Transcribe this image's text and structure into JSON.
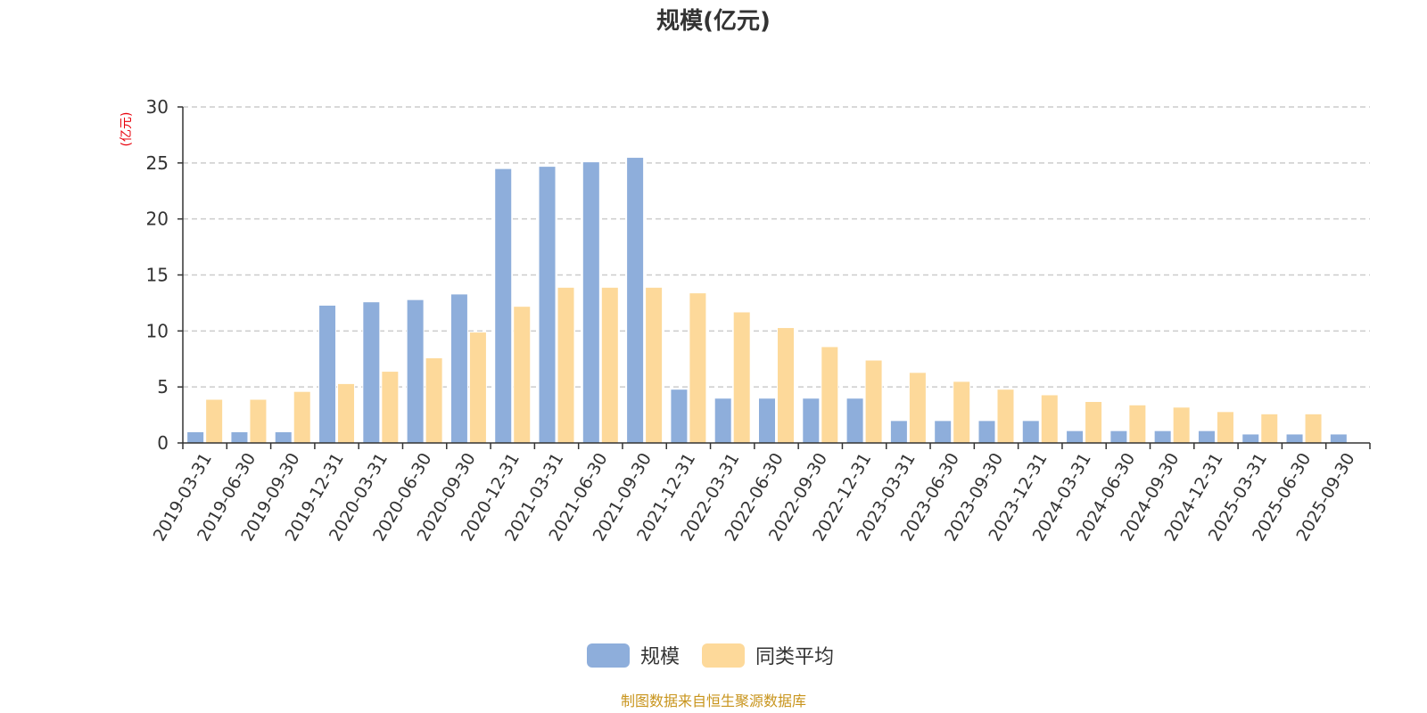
{
  "chart_data": {
    "type": "bar",
    "title": "规模(亿元)",
    "ylabel": "(亿元)",
    "ylim": [
      0,
      30
    ],
    "yticks": [
      0,
      5,
      10,
      15,
      20,
      25,
      30
    ],
    "grid": true,
    "legend_position": "bottom",
    "categories": [
      "2019-03-31",
      "2019-06-30",
      "2019-09-30",
      "2019-12-31",
      "2020-03-31",
      "2020-06-30",
      "2020-09-30",
      "2020-12-31",
      "2021-03-31",
      "2021-06-30",
      "2021-09-30",
      "2021-12-31",
      "2022-03-31",
      "2022-06-30",
      "2022-09-30",
      "2022-12-31",
      "2023-03-31",
      "2023-06-30",
      "2023-09-30",
      "2023-12-31",
      "2024-03-31",
      "2024-06-30",
      "2024-09-30",
      "2024-12-31",
      "2025-03-31",
      "2025-06-30",
      "2025-09-30"
    ],
    "series": [
      {
        "name": "规模",
        "color": "#8eaedb",
        "values": [
          1.0,
          1.0,
          1.0,
          12.3,
          12.6,
          12.8,
          13.3,
          24.5,
          24.7,
          25.1,
          25.5,
          4.8,
          4.0,
          4.0,
          4.0,
          4.0,
          2.0,
          2.0,
          2.0,
          2.0,
          1.1,
          1.1,
          1.1,
          1.1,
          0.8,
          0.8,
          0.8
        ]
      },
      {
        "name": "同类平均",
        "color": "#fdd99a",
        "values": [
          3.9,
          3.9,
          4.6,
          5.3,
          6.4,
          7.6,
          9.9,
          12.2,
          13.9,
          13.9,
          13.9,
          13.4,
          11.7,
          10.3,
          8.6,
          7.4,
          6.3,
          5.5,
          4.8,
          4.3,
          3.7,
          3.4,
          3.2,
          2.8,
          2.6,
          2.6,
          null
        ]
      }
    ]
  },
  "footer": {
    "source": "制图数据来自恒生聚源数据库"
  }
}
